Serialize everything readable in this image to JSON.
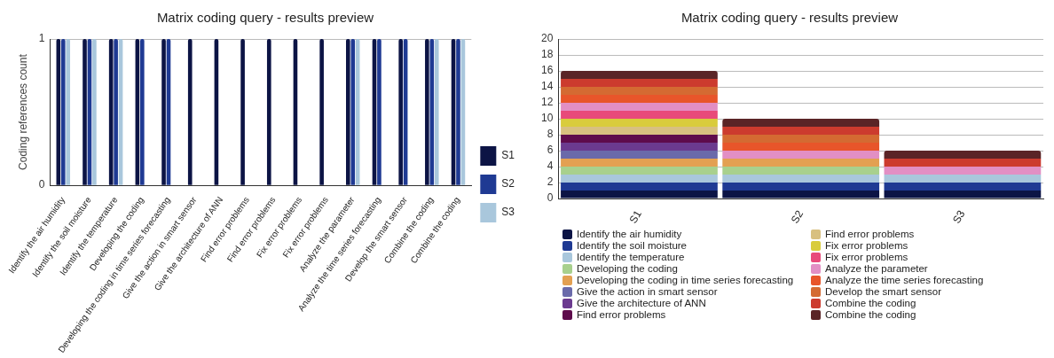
{
  "chart_data": [
    {
      "type": "bar",
      "title": "Matrix coding query - results preview",
      "ylabel": "Coding references count",
      "categories": [
        "Identify the air humidity",
        "Identify the soil moisture",
        "Identify the temperature",
        "Developing the coding",
        "Developing the coding in time series forecasting",
        "Give the action in smart sensor",
        "Give the architecture of ANN",
        "Find error problems",
        "Find error problems",
        "Fix error problems",
        "Fix error problems",
        "Analyze the parameter",
        "Analyze the time series forecasting",
        "Develop the smart sensor",
        "Combine the coding",
        "Combine the coding"
      ],
      "series": [
        {
          "name": "S1",
          "color": "#0c1445",
          "values": [
            1,
            1,
            1,
            1,
            1,
            1,
            1,
            1,
            1,
            1,
            1,
            1,
            1,
            1,
            1,
            1
          ]
        },
        {
          "name": "S2",
          "color": "#1f3a93",
          "values": [
            1,
            1,
            1,
            1,
            1,
            0,
            0,
            0,
            0,
            0,
            0,
            1,
            1,
            1,
            1,
            1
          ]
        },
        {
          "name": "S3",
          "color": "#a9c7dc",
          "values": [
            1,
            1,
            1,
            0,
            0,
            0,
            0,
            0,
            0,
            0,
            0,
            1,
            0,
            0,
            1,
            1
          ]
        }
      ],
      "ylim": [
        0,
        1
      ],
      "yticks": [
        0,
        1
      ],
      "grid": "y",
      "legend": "right"
    },
    {
      "type": "bar",
      "title": "Matrix coding query - results preview",
      "stacked": true,
      "categories": [
        "S1",
        "S2",
        "S3"
      ],
      "series": [
        {
          "name": "Identify the air humidity",
          "color": "#0c1445",
          "values": [
            1,
            1,
            1
          ]
        },
        {
          "name": "Identify the soil moisture",
          "color": "#1f3a93",
          "values": [
            1,
            1,
            1
          ]
        },
        {
          "name": "Identify the temperature",
          "color": "#a9c7dc",
          "values": [
            1,
            1,
            1
          ]
        },
        {
          "name": "Developing the coding",
          "color": "#a8d08d",
          "values": [
            1,
            1,
            0
          ]
        },
        {
          "name": "Developing the coding in time series forecasting",
          "color": "#e3a052",
          "values": [
            1,
            1,
            0
          ]
        },
        {
          "name": "Give the action in smart sensor",
          "color": "#6a6aaa",
          "values": [
            1,
            0,
            0
          ]
        },
        {
          "name": "Give the architecture of ANN",
          "color": "#6b3a8f",
          "values": [
            1,
            0,
            0
          ]
        },
        {
          "name": "Find error problems",
          "color": "#5e0b4c",
          "values": [
            1,
            0,
            0
          ]
        },
        {
          "name": "Find error problems",
          "color": "#d8c080",
          "values": [
            1,
            0,
            0
          ]
        },
        {
          "name": "Fix error problems",
          "color": "#d9cc3c",
          "values": [
            1,
            0,
            0
          ]
        },
        {
          "name": "Fix error problems",
          "color": "#e84a7a",
          "values": [
            1,
            0,
            0
          ]
        },
        {
          "name": "Analyze the parameter",
          "color": "#e28fc4",
          "values": [
            1,
            1,
            1
          ]
        },
        {
          "name": "Analyze the time series forecasting",
          "color": "#e8552a",
          "values": [
            1,
            1,
            0
          ]
        },
        {
          "name": "Develop the smart sensor",
          "color": "#d46a32",
          "values": [
            1,
            1,
            0
          ]
        },
        {
          "name": "Combine the coding",
          "color": "#cc3b2e",
          "values": [
            1,
            1,
            1
          ]
        },
        {
          "name": "Combine the coding",
          "color": "#5a2426",
          "values": [
            1,
            1,
            1
          ]
        }
      ],
      "ylim": [
        0,
        20
      ],
      "yticks": [
        0,
        2,
        4,
        6,
        8,
        10,
        12,
        14,
        16,
        18,
        20
      ],
      "grid": "y",
      "legend": "bottom"
    }
  ]
}
